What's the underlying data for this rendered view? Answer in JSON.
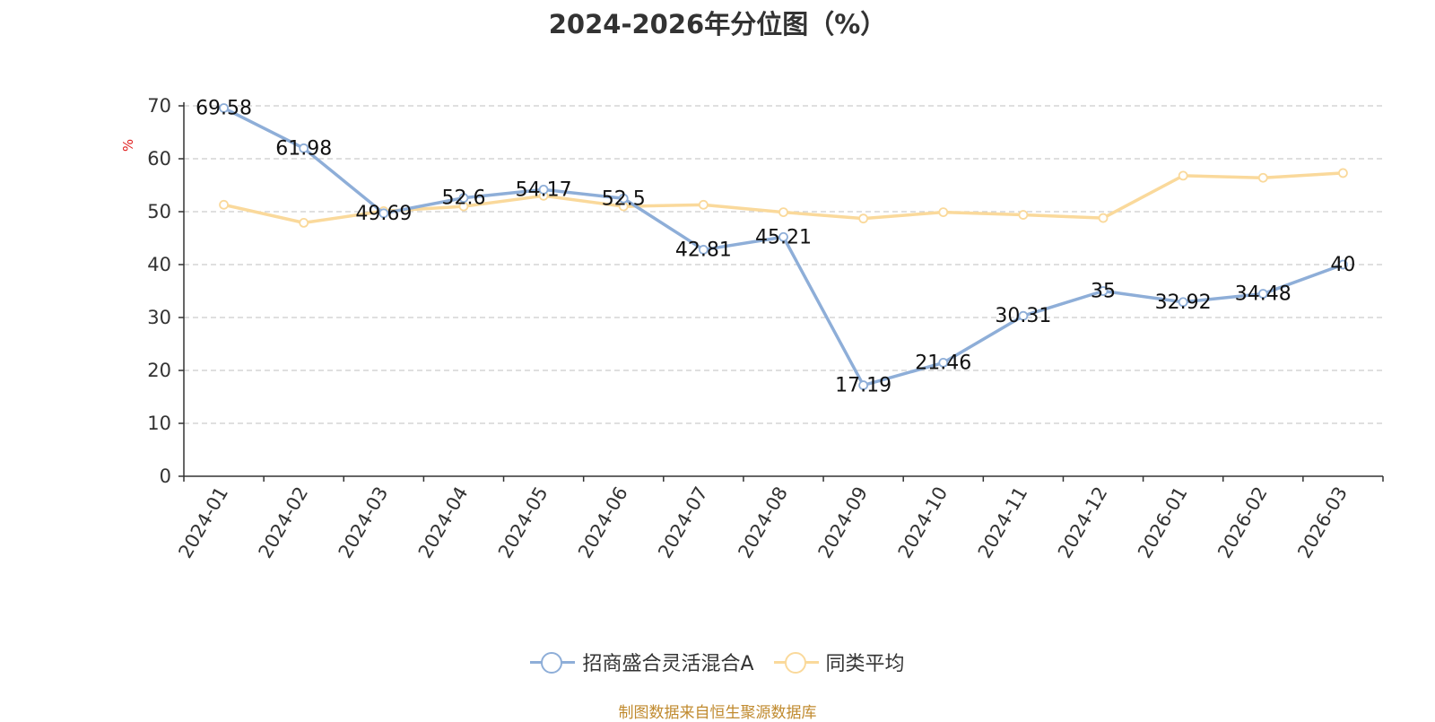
{
  "chart_data": {
    "type": "line",
    "title": "2024-2026年分位图（%）",
    "ylabel": "%",
    "ylim": [
      0,
      70
    ],
    "yticks": [
      0,
      10,
      20,
      30,
      40,
      50,
      60,
      70
    ],
    "grid": true,
    "legend_position": "bottom",
    "categories": [
      "2024-01",
      "2024-02",
      "2024-03",
      "2024-04",
      "2024-05",
      "2024-06",
      "2024-07",
      "2024-08",
      "2024-09",
      "2024-10",
      "2024-11",
      "2024-12",
      "2026-01",
      "2026-02",
      "2026-03"
    ],
    "series": [
      {
        "name": "招商盛合灵活混合A",
        "color": "#8eaed8",
        "values": [
          69.58,
          61.98,
          49.69,
          52.6,
          54.17,
          52.5,
          42.81,
          45.21,
          17.19,
          21.46,
          30.31,
          35,
          32.92,
          34.48,
          40
        ],
        "labels": [
          "69.58",
          "61.98",
          "49.69",
          "52.6",
          "54.17",
          "52.5",
          "42.81",
          "45.21",
          "17.19",
          "21.46",
          "30.31",
          "35",
          "32.92",
          "34.48",
          "40"
        ]
      },
      {
        "name": "同类平均",
        "color": "#fad99b",
        "values": [
          51.3,
          47.9,
          50.1,
          51.0,
          53.0,
          51.0,
          51.3,
          49.9,
          48.7,
          49.9,
          49.4,
          48.8,
          56.8,
          56.4,
          57.3
        ]
      }
    ]
  },
  "source_note": "制图数据来自恒生聚源数据库"
}
